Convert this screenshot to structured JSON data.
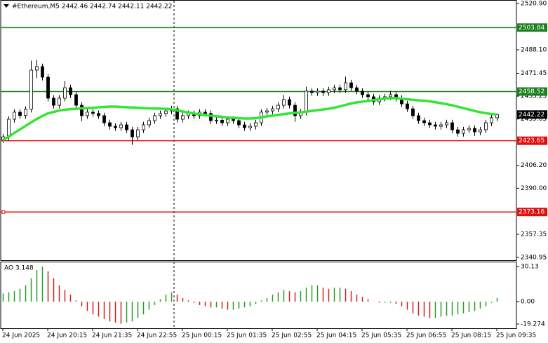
{
  "chart_data": [
    {
      "type": "candlestick",
      "title": "#Ethereum,M5",
      "subtitle": "2442.46 2442.74 2442.11 2442.22",
      "categories": [
        "24 Jun 2025",
        null,
        null,
        null,
        null,
        null,
        null,
        null,
        "24 Jun 20:15",
        null,
        null,
        null,
        null,
        null,
        null,
        null,
        "24 Jun 21:35",
        null,
        null,
        null,
        null,
        null,
        null,
        null,
        "24 Jun 22:55",
        null,
        null,
        null,
        null,
        null,
        null,
        null,
        "25 Jun 00:15",
        null,
        null,
        null,
        null,
        null,
        null,
        null,
        "25 Jun 01:35",
        null,
        null,
        null,
        null,
        null,
        null,
        null,
        "25 Jun 02:55",
        null,
        null,
        null,
        null,
        null,
        null,
        null,
        "25 Jun 04:15",
        null,
        null,
        null,
        null,
        null,
        null,
        null,
        "25 Jun 05:35",
        null,
        null,
        null,
        null,
        null,
        null,
        null,
        "25 Jun 06:55",
        null,
        null,
        null,
        null,
        null,
        null,
        null,
        "25 Jun 08:15",
        null,
        null,
        null,
        null,
        null,
        null,
        null,
        "25 Jun 09:35"
      ],
      "open": [
        2424.5,
        2426.4,
        2438.9,
        2443.9,
        2441.5,
        2446.0,
        2473.7,
        2476.2,
        2468.7,
        2453.8,
        2448.8,
        2453.8,
        2461.2,
        2456.3,
        2448.8,
        2441.4,
        2443.9,
        2443.0,
        2441.4,
        2436.4,
        2433.9,
        2432.9,
        2434.9,
        2431.4,
        2426.4,
        2431.4,
        2434.9,
        2437.9,
        2441.4,
        2442.9,
        2444.8,
        2446.3,
        2438.9,
        2441.4,
        2442.9,
        2441.4,
        2443.9,
        2443.0,
        2437.9,
        2438.2,
        2436.4,
        2438.9,
        2437.9,
        2434.9,
        2432.9,
        2433.9,
        2436.4,
        2443.9,
        2444.8,
        2446.3,
        2448.8,
        2452.8,
        2448.8,
        2441.4,
        2443.9,
        2458.8,
        2457.8,
        2458.8,
        2457.8,
        2459.8,
        2461.2,
        2459.8,
        2464.7,
        2461.2,
        2458.8,
        2456.3,
        2454.8,
        2451.3,
        2453.8,
        2454.8,
        2456.3,
        2453.8,
        2449.8,
        2446.3,
        2441.4,
        2437.9,
        2436.4,
        2434.9,
        2433.9,
        2434.9,
        2436.4,
        2431.4,
        2428.9,
        2431.4,
        2432.4,
        2429.9,
        2431.4,
        2436.4,
        2439.9
      ],
      "high": [
        2428.5,
        2441.0,
        2446.0,
        2446.0,
        2448.1,
        2480.4,
        2481.0,
        2478.3,
        2470.8,
        2455.9,
        2455.9,
        2466.0,
        2463.3,
        2458.4,
        2450.9,
        2446.0,
        2446.0,
        2445.1,
        2443.5,
        2438.5,
        2436.0,
        2437.0,
        2437.0,
        2433.5,
        2433.5,
        2437.0,
        2440.0,
        2443.5,
        2445.0,
        2446.9,
        2448.4,
        2448.4,
        2443.5,
        2445.0,
        2445.0,
        2446.0,
        2446.0,
        2445.1,
        2440.3,
        2440.3,
        2441.0,
        2441.0,
        2440.0,
        2437.0,
        2436.0,
        2438.5,
        2446.0,
        2446.9,
        2448.4,
        2450.9,
        2456.0,
        2454.9,
        2450.9,
        2446.0,
        2462.0,
        2460.9,
        2460.9,
        2460.9,
        2461.9,
        2463.3,
        2463.3,
        2469.0,
        2466.8,
        2463.3,
        2460.9,
        2458.4,
        2456.9,
        2455.9,
        2456.9,
        2459.0,
        2458.4,
        2455.9,
        2451.9,
        2448.4,
        2443.5,
        2440.0,
        2438.5,
        2437.0,
        2437.0,
        2438.5,
        2438.5,
        2433.5,
        2433.5,
        2434.5,
        2434.5,
        2433.5,
        2438.5,
        2442.0,
        2442.74
      ],
      "low": [
        2422.2,
        2424.1,
        2436.6,
        2439.2,
        2439.2,
        2443.7,
        2468.0,
        2466.4,
        2451.5,
        2446.5,
        2446.5,
        2451.5,
        2454.0,
        2446.5,
        2437.5,
        2439.1,
        2440.7,
        2439.1,
        2434.1,
        2431.6,
        2430.6,
        2430.6,
        2429.1,
        2420.8,
        2424.1,
        2429.1,
        2432.6,
        2435.6,
        2439.1,
        2440.6,
        2442.5,
        2436.6,
        2436.6,
        2439.1,
        2439.1,
        2439.1,
        2440.7,
        2435.6,
        2435.6,
        2434.1,
        2434.1,
        2435.6,
        2432.6,
        2430.6,
        2430.6,
        2431.6,
        2434.1,
        2441.6,
        2442.5,
        2444.0,
        2446.5,
        2446.5,
        2437.0,
        2439.1,
        2441.6,
        2455.5,
        2455.5,
        2455.5,
        2455.5,
        2457.5,
        2457.5,
        2457.5,
        2458.9,
        2456.5,
        2454.0,
        2452.5,
        2449.0,
        2449.0,
        2451.5,
        2452.5,
        2451.5,
        2447.5,
        2444.0,
        2439.1,
        2435.6,
        2434.1,
        2432.6,
        2431.6,
        2431.6,
        2432.6,
        2429.1,
        2426.6,
        2426.6,
        2429.1,
        2427.0,
        2427.6,
        2429.1,
        2434.1,
        2437.6
      ],
      "close": [
        2426.4,
        2438.9,
        2443.9,
        2441.5,
        2446.0,
        2473.7,
        2476.2,
        2468.7,
        2453.8,
        2448.8,
        2453.8,
        2461.2,
        2456.3,
        2448.8,
        2441.4,
        2443.9,
        2443.0,
        2441.4,
        2436.4,
        2433.9,
        2432.9,
        2434.9,
        2431.4,
        2426.4,
        2431.4,
        2434.9,
        2437.9,
        2441.4,
        2442.9,
        2444.8,
        2446.3,
        2438.9,
        2441.4,
        2442.9,
        2441.4,
        2443.9,
        2443.0,
        2437.9,
        2438.2,
        2436.4,
        2438.9,
        2437.9,
        2434.9,
        2432.9,
        2433.9,
        2436.4,
        2443.9,
        2444.8,
        2446.3,
        2448.8,
        2452.8,
        2448.8,
        2441.4,
        2443.9,
        2458.8,
        2457.8,
        2458.8,
        2457.8,
        2459.8,
        2461.2,
        2459.8,
        2464.7,
        2461.2,
        2458.8,
        2456.3,
        2454.8,
        2451.3,
        2453.8,
        2454.8,
        2456.3,
        2453.8,
        2449.8,
        2446.3,
        2441.4,
        2437.9,
        2436.4,
        2434.9,
        2433.9,
        2434.9,
        2436.4,
        2431.4,
        2428.9,
        2431.4,
        2432.4,
        2429.9,
        2431.4,
        2436.4,
        2439.9,
        2442.22
      ],
      "ma_color": "#33e633",
      "ma_values": [
        2424.0,
        2426.5,
        2429.0,
        2431.5,
        2434.0,
        2436.5,
        2439.0,
        2441.0,
        2443.0,
        2444.0,
        2445.0,
        2445.6,
        2446.0,
        2446.3,
        2446.6,
        2446.8,
        2447.0,
        2447.3,
        2447.6,
        2447.8,
        2447.8,
        2447.6,
        2447.4,
        2447.2,
        2447.0,
        2446.8,
        2446.6,
        2446.5,
        2446.4,
        2446.3,
        2446.0,
        2445.2,
        2444.4,
        2443.6,
        2443.0,
        2442.4,
        2441.9,
        2441.4,
        2441.0,
        2440.6,
        2440.2,
        2439.9,
        2439.6,
        2439.4,
        2439.4,
        2439.6,
        2440.2,
        2440.9,
        2441.4,
        2442.0,
        2442.5,
        2443.0,
        2443.4,
        2443.7,
        2444.2,
        2444.8,
        2445.3,
        2445.8,
        2446.3,
        2447.0,
        2448.0,
        2449.0,
        2450.0,
        2450.8,
        2451.3,
        2451.8,
        2452.4,
        2453.0,
        2453.5,
        2453.8,
        2453.8,
        2453.5,
        2453.1,
        2452.6,
        2452.3,
        2452.0,
        2451.6,
        2451.0,
        2450.3,
        2449.6,
        2448.8,
        2447.8,
        2446.8,
        2445.8,
        2444.8,
        2443.9,
        2443.2,
        2442.6,
        2442.2
      ],
      "ylim": [
        2338.46,
        2523.39
      ],
      "yticks": [
        {
          "value": 2520.9,
          "label": "2520.90"
        },
        {
          "value": 2488.1,
          "label": "2488.10"
        },
        {
          "value": 2471.45,
          "label": "2471.45"
        },
        {
          "value": 2455.25,
          "label": "2455.25"
        },
        {
          "value": 2439.05,
          "label": "2439.05"
        },
        {
          "value": 2406.2,
          "label": "2406.20"
        },
        {
          "value": 2390,
          "label": "2390.00"
        },
        {
          "value": 2357.35,
          "label": "2357.35"
        },
        {
          "value": 2340.95,
          "label": "2340.95"
        }
      ],
      "levels": [
        {
          "value": 2503.84,
          "color": "#1e7f1e"
        },
        {
          "value": 2458.52,
          "color": "#1e7f1e"
        },
        {
          "value": 2423.65,
          "color": "#e01010"
        },
        {
          "value": 2373.16,
          "color": "#e01010"
        }
      ],
      "last_price": 2442.22
    },
    {
      "type": "bar",
      "title": "AO 3.148",
      "values": [
        7,
        8,
        9,
        11,
        14,
        20,
        27,
        30,
        26,
        20,
        14,
        10,
        6,
        1,
        -4,
        -8,
        -11,
        -13,
        -15,
        -17,
        -18,
        -19,
        -18,
        -17,
        -14,
        -11,
        -7,
        -3,
        2,
        6,
        8,
        6,
        3,
        1,
        -1,
        -3,
        -4,
        -5,
        -5,
        -6,
        -7,
        -7,
        -6,
        -5,
        -4,
        -2,
        1,
        3,
        6,
        8,
        10,
        9,
        8,
        9,
        12,
        14,
        14,
        12,
        11,
        12,
        12,
        11,
        9,
        6,
        4,
        2,
        0,
        -1,
        -1,
        -1,
        -2,
        -4,
        -7,
        -10,
        -12,
        -13,
        -14,
        -14,
        -13,
        -12,
        -12,
        -11,
        -10,
        -9,
        -8,
        -6,
        -4,
        -1,
        3.148
      ],
      "up_color": "#2a9d2a",
      "down_color": "#d02020",
      "ylim": [
        -22.89,
        33.73
      ],
      "yticks": [
        {
          "value": 30.13,
          "label": "30.13"
        },
        {
          "value": 0,
          "label": "0.00"
        },
        {
          "value": -19.274,
          "label": "-19.274"
        }
      ]
    }
  ]
}
